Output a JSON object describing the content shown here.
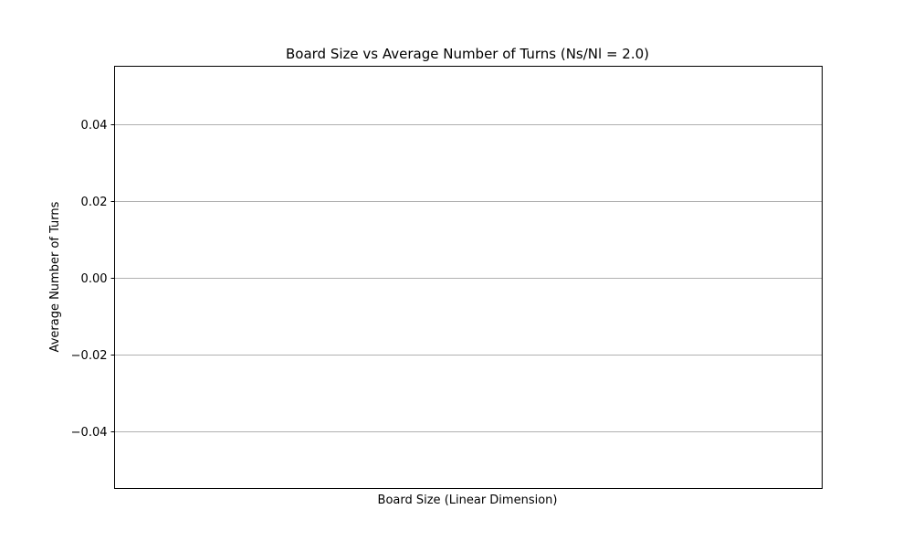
{
  "chart_data": {
    "type": "line",
    "title": "Board Size vs Average Number of Turns (Ns/Nl = 2.0)",
    "xlabel": "Board Size (Linear Dimension)",
    "ylabel": "Average Number of Turns",
    "x": [],
    "series": [],
    "ylim": [
      -0.055,
      0.055
    ],
    "yticks": [
      0.04,
      0.02,
      0.0,
      -0.02,
      -0.04
    ],
    "ytick_labels": [
      "0.04",
      "0.02",
      "0.00",
      "−0.02",
      "−0.04"
    ],
    "xticks": [],
    "grid": {
      "y": true,
      "x": false
    },
    "legend": "none",
    "colors": {
      "grid": "#b0b0b0",
      "axes": "#000000",
      "background": "#ffffff"
    }
  }
}
